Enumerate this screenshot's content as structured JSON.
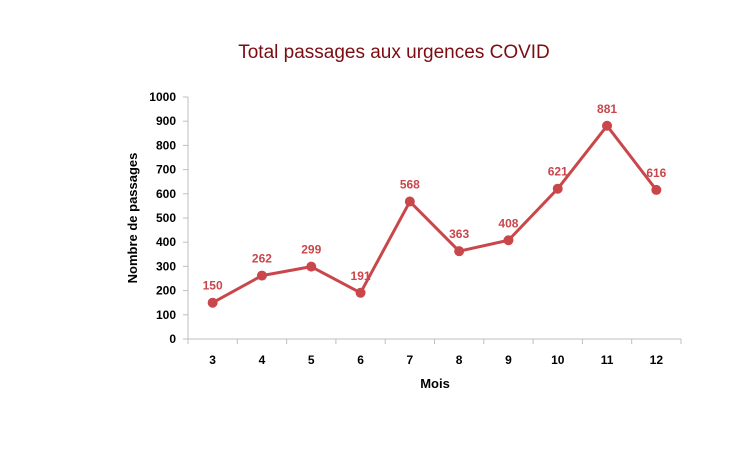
{
  "chart_data": {
    "type": "line",
    "title": "Total passages aux urgences COVID",
    "xlabel": "Mois",
    "ylabel": "Nombre de passages",
    "categories": [
      "3",
      "4",
      "5",
      "6",
      "7",
      "8",
      "9",
      "10",
      "11",
      "12"
    ],
    "series": [
      {
        "values": [
          150,
          262,
          299,
          191,
          568,
          363,
          408,
          621,
          881,
          616
        ]
      }
    ],
    "data_labels": [
      "150",
      "262",
      "299",
      "191",
      "568",
      "363",
      "408",
      "621",
      "881",
      "616"
    ],
    "ylim": [
      0,
      1000
    ],
    "yticks": [
      "0",
      "100",
      "200",
      "300",
      "400",
      "500",
      "600",
      "700",
      "800",
      "900",
      "1000"
    ],
    "grid": false,
    "legend": "none",
    "colors": {
      "line": "#c9474b",
      "title": "#7b0d12",
      "axis": "#bfbfbf"
    }
  }
}
